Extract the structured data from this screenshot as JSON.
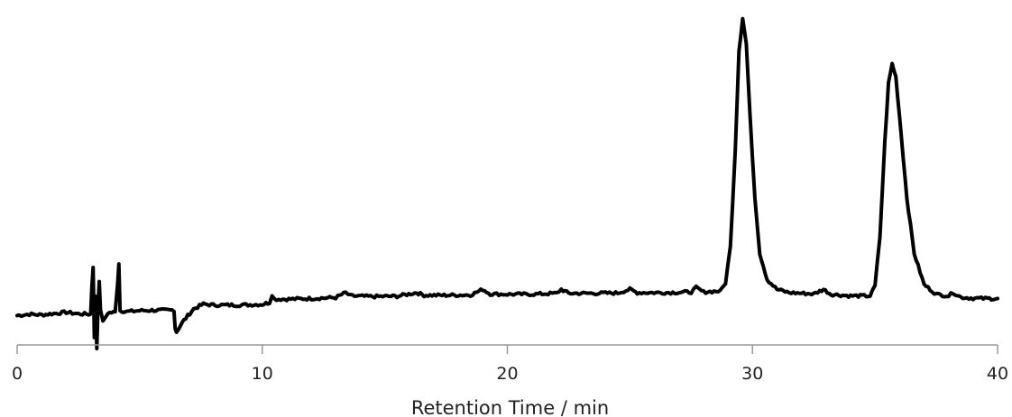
{
  "chart_data": {
    "type": "line",
    "title": "",
    "xlabel": "Retention Time / min",
    "ylabel": "",
    "xlim": [
      0,
      40
    ],
    "ylim": [
      0,
      100
    ],
    "x_ticks": [
      0,
      10,
      20,
      30,
      40
    ],
    "x_tick_labels": [
      "0",
      "10",
      "20",
      "30",
      "40"
    ],
    "y_axis_visible": false,
    "grid": false,
    "legend": "none",
    "line_color": "#000000",
    "series": [
      {
        "points": [
          [
            0.0,
            9.0
          ],
          [
            0.5,
            9.4
          ],
          [
            1.0,
            9.2
          ],
          [
            1.5,
            9.6
          ],
          [
            2.0,
            10.0
          ],
          [
            2.5,
            9.5
          ],
          [
            3.0,
            9.4
          ],
          [
            3.05,
            18.0
          ],
          [
            3.1,
            24.0
          ],
          [
            3.15,
            2.0
          ],
          [
            3.2,
            15.0
          ],
          [
            3.25,
            -1.0
          ],
          [
            3.3,
            12.0
          ],
          [
            3.35,
            19.0
          ],
          [
            3.4,
            11.0
          ],
          [
            3.5,
            7.0
          ],
          [
            3.7,
            9.8
          ],
          [
            4.0,
            10.0
          ],
          [
            4.1,
            19.0
          ],
          [
            4.15,
            25.0
          ],
          [
            4.2,
            10.5
          ],
          [
            4.5,
            10.2
          ],
          [
            5.0,
            10.5
          ],
          [
            5.5,
            10.6
          ],
          [
            6.0,
            10.6
          ],
          [
            6.4,
            10.7
          ],
          [
            6.45,
            5.0
          ],
          [
            6.5,
            4.0
          ],
          [
            6.8,
            7.5
          ],
          [
            7.2,
            11.0
          ],
          [
            7.6,
            12.5
          ],
          [
            8.0,
            12.2
          ],
          [
            9.0,
            12.2
          ],
          [
            10.0,
            12.4
          ],
          [
            10.3,
            13.0
          ],
          [
            10.4,
            15.5
          ],
          [
            10.5,
            14.0
          ],
          [
            11.0,
            14.0
          ],
          [
            12.0,
            14.2
          ],
          [
            13.0,
            14.5
          ],
          [
            13.4,
            16.0
          ],
          [
            13.6,
            15.0
          ],
          [
            14.5,
            14.8
          ],
          [
            15.5,
            14.9
          ],
          [
            16.3,
            16.0
          ],
          [
            16.6,
            15.2
          ],
          [
            17.5,
            15.2
          ],
          [
            18.5,
            15.3
          ],
          [
            19.0,
            17.0
          ],
          [
            19.3,
            15.6
          ],
          [
            20.0,
            15.5
          ],
          [
            21.0,
            15.5
          ],
          [
            22.0,
            15.8
          ],
          [
            22.2,
            17.0
          ],
          [
            22.5,
            15.8
          ],
          [
            23.5,
            15.8
          ],
          [
            24.5,
            15.9
          ],
          [
            25.0,
            17.0
          ],
          [
            25.3,
            16.0
          ],
          [
            26.5,
            16.0
          ],
          [
            27.5,
            16.2
          ],
          [
            27.7,
            17.5
          ],
          [
            28.0,
            16.2
          ],
          [
            28.7,
            16.5
          ],
          [
            28.9,
            19.0
          ],
          [
            29.1,
            30.0
          ],
          [
            29.3,
            60.0
          ],
          [
            29.45,
            90.0
          ],
          [
            29.6,
            100.0
          ],
          [
            29.75,
            92.0
          ],
          [
            29.9,
            70.0
          ],
          [
            30.1,
            45.0
          ],
          [
            30.3,
            28.0
          ],
          [
            30.6,
            20.0
          ],
          [
            31.0,
            17.0
          ],
          [
            31.5,
            16.0
          ],
          [
            32.0,
            15.8
          ],
          [
            32.5,
            15.6
          ],
          [
            32.9,
            17.0
          ],
          [
            33.2,
            15.5
          ],
          [
            34.0,
            15.0
          ],
          [
            34.8,
            15.0
          ],
          [
            35.0,
            18.0
          ],
          [
            35.2,
            33.0
          ],
          [
            35.4,
            62.0
          ],
          [
            35.55,
            80.0
          ],
          [
            35.7,
            86.0
          ],
          [
            35.85,
            82.0
          ],
          [
            36.0,
            70.0
          ],
          [
            36.3,
            45.0
          ],
          [
            36.6,
            28.0
          ],
          [
            37.0,
            18.5
          ],
          [
            37.5,
            15.5
          ],
          [
            38.0,
            15.0
          ],
          [
            38.2,
            16.0
          ],
          [
            38.5,
            14.6
          ],
          [
            39.0,
            14.3
          ],
          [
            39.5,
            14.2
          ],
          [
            40.0,
            14.2
          ]
        ]
      }
    ]
  }
}
